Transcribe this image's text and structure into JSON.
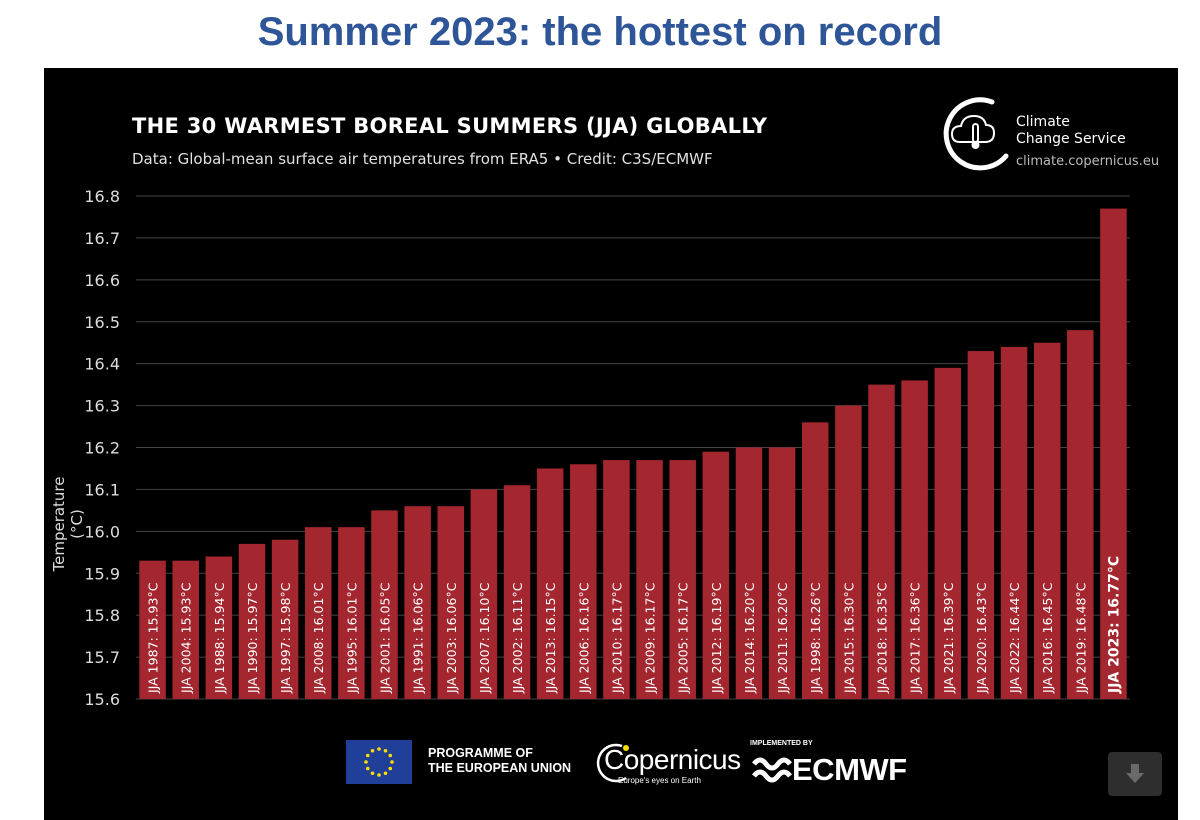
{
  "page_title": "Summer 2023: the hottest on record",
  "chart_data": {
    "type": "bar",
    "title": "THE 30 WARMEST BOREAL SUMMERS (JJA) GLOBALLY",
    "subtitle": "Data: Global-mean surface air temperatures from ERA5 • Credit: C3S/ECMWF",
    "ylabel": "Temperature (°C)",
    "xlabel": "",
    "ylim": [
      15.6,
      16.8
    ],
    "yticks": [
      "16.8",
      "16.7",
      "16.6",
      "16.5",
      "16.4",
      "16.3",
      "16.2",
      "16.1",
      "16.0",
      "15.9",
      "15.8",
      "15.7",
      "15.6"
    ],
    "grid": true,
    "bar_color": "#a4262f",
    "categories": [
      "JJA 1987: 15.93°C",
      "JJA 2004: 15.93°C",
      "JJA 1988: 15.94°C",
      "JJA 1990: 15.97°C",
      "JJA 1997: 15.98°C",
      "JJA 2008: 16.01°C",
      "JJA 1995: 16.01°C",
      "JJA 2001: 16.05°C",
      "JJA 1991: 16.06°C",
      "JJA 2003: 16.06°C",
      "JJA 2007: 16.10°C",
      "JJA 2002: 16.11°C",
      "JJA 2013: 16.15°C",
      "JJA 2006: 16.16°C",
      "JJA 2010: 16.17°C",
      "JJA 2009: 16.17°C",
      "JJA 2005: 16.17°C",
      "JJA 2012: 16.19°C",
      "JJA 2014: 16.20°C",
      "JJA 2011: 16.20°C",
      "JJA 1998: 16.26°C",
      "JJA 2015: 16.30°C",
      "JJA 2018: 16.35°C",
      "JJA 2017: 16.36°C",
      "JJA 2021: 16.39°C",
      "JJA 2020: 16.43°C",
      "JJA 2022: 16.44°C",
      "JJA 2016: 16.45°C",
      "JJA 2019: 16.48°C",
      "JJA 2023: 16.77°C"
    ],
    "values": [
      15.93,
      15.93,
      15.94,
      15.97,
      15.98,
      16.01,
      16.01,
      16.05,
      16.06,
      16.06,
      16.1,
      16.11,
      16.15,
      16.16,
      16.17,
      16.17,
      16.17,
      16.19,
      16.2,
      16.2,
      16.26,
      16.3,
      16.35,
      16.36,
      16.39,
      16.43,
      16.44,
      16.45,
      16.48,
      16.77
    ],
    "highlight_index": 29
  },
  "logo": {
    "line1": "Climate",
    "line2": "Change Service",
    "url": "climate.copernicus.eu"
  },
  "footer": {
    "eu_line1": "PROGRAMME OF",
    "eu_line2": "THE EUROPEAN UNION",
    "copernicus_name": "Copernicus",
    "copernicus_tagline": "Europe's eyes on Earth",
    "ecmwf_implemented": "IMPLEMENTED BY",
    "ecmwf_name": "ECMWF"
  },
  "icons": {
    "download": "download-arrow-icon"
  }
}
